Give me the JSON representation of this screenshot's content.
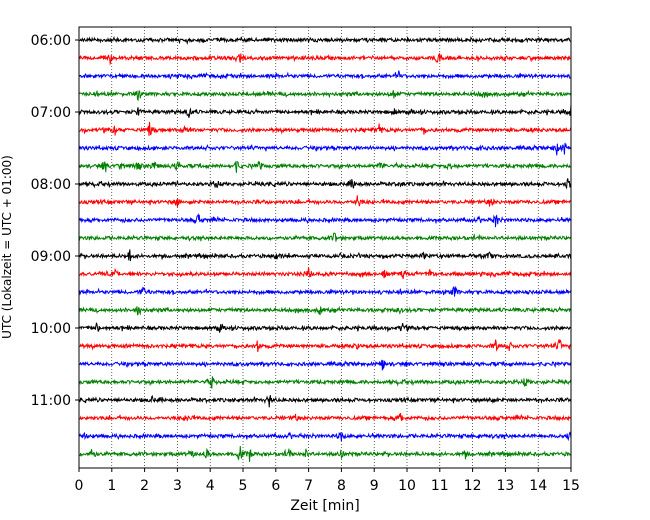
{
  "chart_data": {
    "type": "line",
    "title": "",
    "xlabel": "Zeit  [min]",
    "ylabel": "UTC (Lokalzeit = UTC + 01:00)",
    "xlim": [
      0,
      15
    ],
    "x_ticks": [
      0,
      1,
      2,
      3,
      4,
      5,
      6,
      7,
      8,
      9,
      10,
      11,
      12,
      13,
      14,
      15
    ],
    "x_tick_labels": [
      "0",
      "1",
      "2",
      "3",
      "4",
      "5",
      "6",
      "7",
      "8",
      "9",
      "10",
      "11",
      "12",
      "13",
      "14",
      "15"
    ],
    "y_tick_labels": [
      "06:00",
      "07:00",
      "08:00",
      "09:00",
      "10:00",
      "11:00"
    ],
    "grid_x": true,
    "colors": [
      "#000000",
      "#ff0000",
      "#0000ff",
      "#008000"
    ],
    "traces": [
      {
        "start": "06:00",
        "color": "#000000",
        "events": []
      },
      {
        "start": "06:15",
        "color": "#ff0000",
        "events": [
          [
            0.95,
            0.5
          ],
          [
            4.95,
            0.9
          ],
          [
            10.95,
            0.9
          ]
        ]
      },
      {
        "start": "06:30",
        "color": "#0000ff",
        "events": [
          [
            9.75,
            0.5
          ]
        ]
      },
      {
        "start": "06:45",
        "color": "#008000",
        "events": [
          [
            1.8,
            0.6
          ],
          [
            9.6,
            0.7
          ],
          [
            12.3,
            0.3
          ]
        ]
      },
      {
        "start": "07:00",
        "color": "#000000",
        "events": [
          [
            1.8,
            0.4
          ],
          [
            3.35,
            0.8
          ],
          [
            9.6,
            0.4
          ],
          [
            15.0,
            0.7
          ]
        ]
      },
      {
        "start": "07:15",
        "color": "#ff0000",
        "events": [
          [
            1.1,
            0.5
          ],
          [
            2.15,
            0.9
          ],
          [
            3.25,
            0.6
          ],
          [
            9.15,
            0.6
          ],
          [
            10.5,
            0.5
          ]
        ]
      },
      {
        "start": "07:30",
        "color": "#0000ff",
        "events": [
          [
            12.3,
            0.3
          ],
          [
            14.55,
            0.9
          ],
          [
            14.8,
            0.6
          ]
        ]
      },
      {
        "start": "07:45",
        "color": "#008000",
        "events": [
          [
            0.8,
            0.7
          ],
          [
            1.3,
            0.6
          ],
          [
            1.8,
            0.5
          ],
          [
            2.3,
            0.6
          ],
          [
            3.0,
            0.6
          ],
          [
            4.8,
            0.7
          ],
          [
            5.5,
            0.5
          ],
          [
            9.2,
            0.5
          ],
          [
            11.3,
            0.6
          ]
        ]
      },
      {
        "start": "08:00",
        "color": "#000000",
        "events": [
          [
            4.2,
            0.7
          ],
          [
            8.35,
            0.7
          ],
          [
            9.8,
            0.4
          ],
          [
            14.9,
            0.9
          ]
        ]
      },
      {
        "start": "08:15",
        "color": "#ff0000",
        "events": [
          [
            3.0,
            0.5
          ],
          [
            8.5,
            0.9
          ],
          [
            12.55,
            0.6
          ]
        ]
      },
      {
        "start": "08:30",
        "color": "#0000ff",
        "events": [
          [
            3.65,
            0.7
          ],
          [
            12.7,
            0.7
          ]
        ]
      },
      {
        "start": "08:45",
        "color": "#008000",
        "events": [
          [
            7.8,
            0.6
          ]
        ]
      },
      {
        "start": "09:00",
        "color": "#000000",
        "events": [
          [
            1.55,
            0.6
          ],
          [
            6.05,
            0.5
          ],
          [
            10.5,
            0.4
          ],
          [
            12.5,
            0.4
          ]
        ]
      },
      {
        "start": "09:15",
        "color": "#ff0000",
        "events": [
          [
            1.1,
            0.4
          ],
          [
            7.0,
            0.8
          ],
          [
            9.3,
            0.5
          ],
          [
            9.9,
            0.5
          ],
          [
            10.7,
            0.5
          ]
        ]
      },
      {
        "start": "09:30",
        "color": "#0000ff",
        "events": [
          [
            1.95,
            0.7
          ],
          [
            11.45,
            0.7
          ]
        ]
      },
      {
        "start": "09:45",
        "color": "#008000",
        "events": [
          [
            1.8,
            0.6
          ],
          [
            7.35,
            0.8
          ],
          [
            9.75,
            0.4
          ]
        ]
      },
      {
        "start": "10:00",
        "color": "#000000",
        "events": [
          [
            0.55,
            0.6
          ],
          [
            4.3,
            0.4
          ],
          [
            9.85,
            0.5
          ]
        ]
      },
      {
        "start": "10:15",
        "color": "#ff0000",
        "events": [
          [
            5.45,
            0.6
          ],
          [
            8.45,
            0.4
          ],
          [
            12.7,
            0.6
          ],
          [
            13.1,
            0.5
          ],
          [
            14.65,
            0.8
          ]
        ]
      },
      {
        "start": "10:30",
        "color": "#0000ff",
        "events": [
          [
            9.25,
            0.7
          ]
        ]
      },
      {
        "start": "10:45",
        "color": "#008000",
        "events": [
          [
            4.05,
            0.7
          ],
          [
            13.6,
            0.6
          ]
        ]
      },
      {
        "start": "11:00",
        "color": "#000000",
        "events": [
          [
            2.25,
            0.4
          ],
          [
            5.8,
            0.8
          ],
          [
            12.5,
            0.6
          ]
        ]
      },
      {
        "start": "11:15",
        "color": "#ff0000",
        "events": [
          [
            3.3,
            0.6
          ],
          [
            6.6,
            0.4
          ],
          [
            9.8,
            0.6
          ]
        ]
      },
      {
        "start": "11:30",
        "color": "#0000ff",
        "events": [
          [
            0.15,
            0.6
          ],
          [
            8.0,
            0.7
          ],
          [
            12.3,
            0.4
          ],
          [
            14.95,
            0.6
          ]
        ]
      },
      {
        "start": "11:45",
        "color": "#008000",
        "events": [
          [
            0.4,
            0.7
          ],
          [
            3.4,
            0.5
          ],
          [
            3.9,
            0.6
          ],
          [
            4.9,
            1.0
          ],
          [
            5.2,
            0.7
          ],
          [
            6.4,
            0.5
          ],
          [
            6.9,
            0.6
          ],
          [
            8.0,
            0.6
          ],
          [
            11.75,
            0.4
          ]
        ]
      }
    ]
  }
}
